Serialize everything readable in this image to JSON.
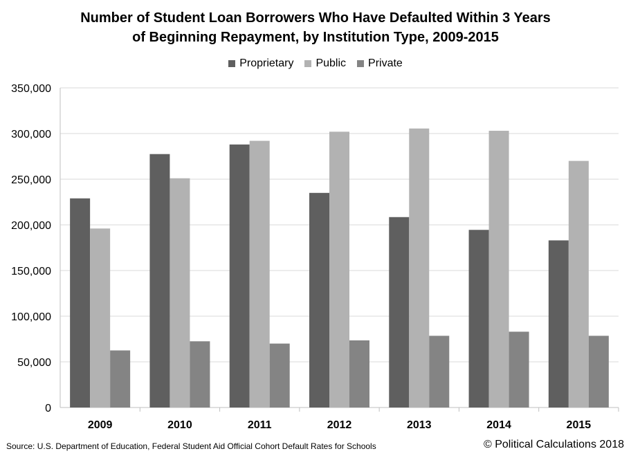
{
  "chart_data": {
    "type": "bar",
    "title_line1": "Number of Student Loan Borrowers Who Have Defaulted Within 3 Years",
    "title_line2": "of Beginning Repayment, by Institution Type, 2009-2015",
    "categories": [
      "2009",
      "2010",
      "2011",
      "2012",
      "2013",
      "2014",
      "2015"
    ],
    "series": [
      {
        "name": "Proprietary",
        "color": "#5f5f5f",
        "values": [
          229000,
          277500,
          288000,
          235000,
          208500,
          194500,
          183000
        ]
      },
      {
        "name": "Public",
        "color": "#b2b2b2",
        "values": [
          196000,
          251000,
          292000,
          302000,
          305500,
          303000,
          270000
        ]
      },
      {
        "name": "Private",
        "color": "#848484",
        "values": [
          62500,
          72500,
          70000,
          73500,
          78500,
          83000,
          78500
        ]
      }
    ],
    "ylim": [
      0,
      350000
    ],
    "yticks": [
      0,
      50000,
      100000,
      150000,
      200000,
      250000,
      300000,
      350000
    ],
    "ytick_labels": [
      "0",
      "50,000",
      "100,000",
      "150,000",
      "200,000",
      "250,000",
      "300,000",
      "350,000"
    ],
    "grid": true,
    "legend_position": "top-center"
  },
  "footer": {
    "source": "Source: U.S. Department of Education, Federal Student Aid Official Cohort Default Rates for Schools",
    "copyright": "© Political Calculations 2018"
  }
}
